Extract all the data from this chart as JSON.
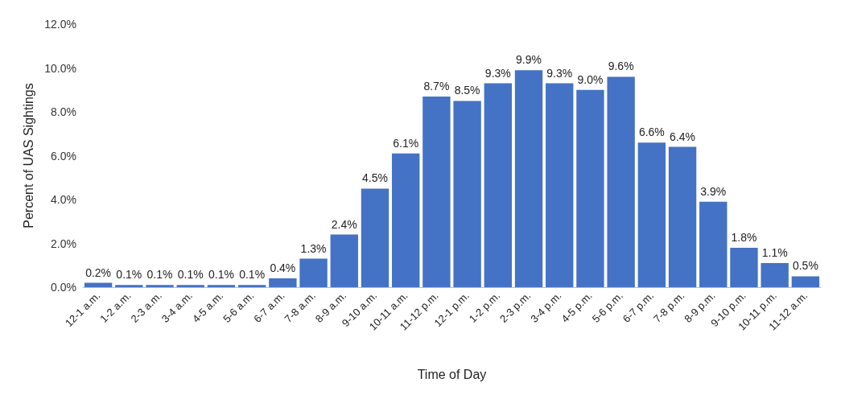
{
  "chart_data": {
    "type": "bar",
    "xlabel": "Time of Day",
    "ylabel": "Percent of UAS Sightings",
    "categories": [
      "12-1 a.m.",
      "1-2 a.m.",
      "2-3 a.m.",
      "3-4 a.m.",
      "4-5 a.m.",
      "5-6 a.m.",
      "6-7 a.m.",
      "7-8 a.m.",
      "8-9 a.m.",
      "9-10 a.m.",
      "10-11 a.m.",
      "11-12 p.m.",
      "12-1 p.m.",
      "1-2 p.m.",
      "2-3 p.m.",
      "3-4 p.m.",
      "4-5 p.m.",
      "5-6 p.m.",
      "6-7 p.m.",
      "7-8 p.m.",
      "8-9 p.m.",
      "9-10 p.m.",
      "10-11 p.m.",
      "11-12 a.m."
    ],
    "values": [
      0.2,
      0.1,
      0.1,
      0.1,
      0.1,
      0.1,
      0.4,
      1.3,
      2.4,
      4.5,
      6.1,
      8.7,
      8.5,
      9.3,
      9.9,
      9.3,
      9.0,
      9.6,
      6.6,
      6.4,
      3.9,
      1.8,
      1.1,
      0.5
    ],
    "value_labels": [
      "0.2%",
      "0.1%",
      "0.1%",
      "0.1%",
      "0.1%",
      "0.1%",
      "0.4%",
      "1.3%",
      "2.4%",
      "4.5%",
      "6.1%",
      "8.7%",
      "8.5%",
      "9.3%",
      "9.9%",
      "9.3%",
      "9.0%",
      "9.6%",
      "6.6%",
      "6.4%",
      "3.9%",
      "1.8%",
      "1.1%",
      "0.5%"
    ],
    "color": "#4472c4",
    "ylim": [
      0,
      12
    ],
    "yticks": [
      {
        "value": 0,
        "label": "0.0%"
      },
      {
        "value": 2,
        "label": "2.0%"
      },
      {
        "value": 4,
        "label": "4.0%"
      },
      {
        "value": 6,
        "label": "6.0%"
      },
      {
        "value": 8,
        "label": "8.0%"
      },
      {
        "value": 10,
        "label": "10.0%"
      },
      {
        "value": 12,
        "label": "12.0%"
      }
    ],
    "grid": false
  }
}
